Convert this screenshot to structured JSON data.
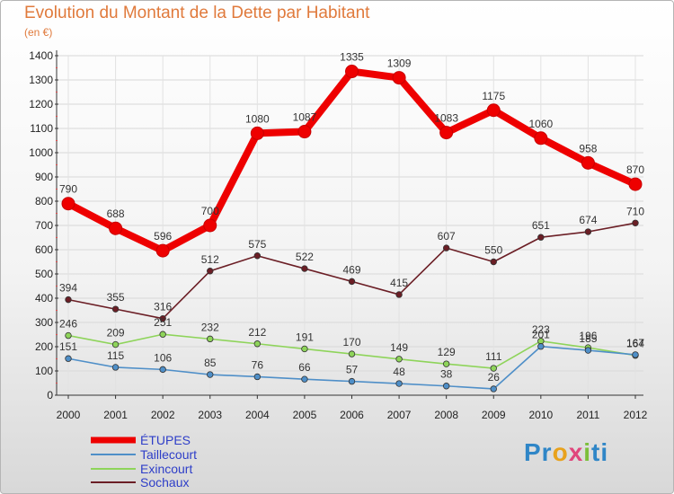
{
  "chart_data": {
    "type": "line",
    "title": "Evolution du Montant de la Dette par Habitant",
    "subtitle": "(en €)",
    "x": [
      "2000",
      "2001",
      "2002",
      "2003",
      "2004",
      "2005",
      "2006",
      "2007",
      "2008",
      "2009",
      "2010",
      "2011",
      "2012"
    ],
    "ylim": [
      0,
      1400
    ],
    "yticks": [
      0,
      100,
      200,
      300,
      400,
      500,
      600,
      700,
      800,
      900,
      1000,
      1100,
      1200,
      1300,
      1400
    ],
    "grid": true,
    "legend_position": "bottom-left",
    "series": [
      {
        "name": "ÉTUPES",
        "color": "#ee0000",
        "values": [
          790,
          688,
          596,
          700,
          1080,
          1087,
          1335,
          1309,
          1083,
          1175,
          1060,
          958,
          870
        ]
      },
      {
        "name": "Taillecourt",
        "color": "#4f8fc8",
        "values": [
          151,
          115,
          106,
          85,
          76,
          66,
          57,
          48,
          38,
          26,
          201,
          185,
          167
        ]
      },
      {
        "name": "Exincourt",
        "color": "#8ed45a",
        "values": [
          246,
          209,
          251,
          232,
          212,
          191,
          170,
          149,
          129,
          111,
          223,
          196,
          164
        ]
      },
      {
        "name": "Sochaux",
        "color": "#6b1e25",
        "values": [
          394,
          355,
          316,
          512,
          575,
          522,
          469,
          415,
          607,
          550,
          651,
          674,
          710
        ]
      }
    ]
  },
  "logo": {
    "text_parts": [
      "Pr",
      "o",
      "x",
      "i",
      "ti"
    ]
  }
}
